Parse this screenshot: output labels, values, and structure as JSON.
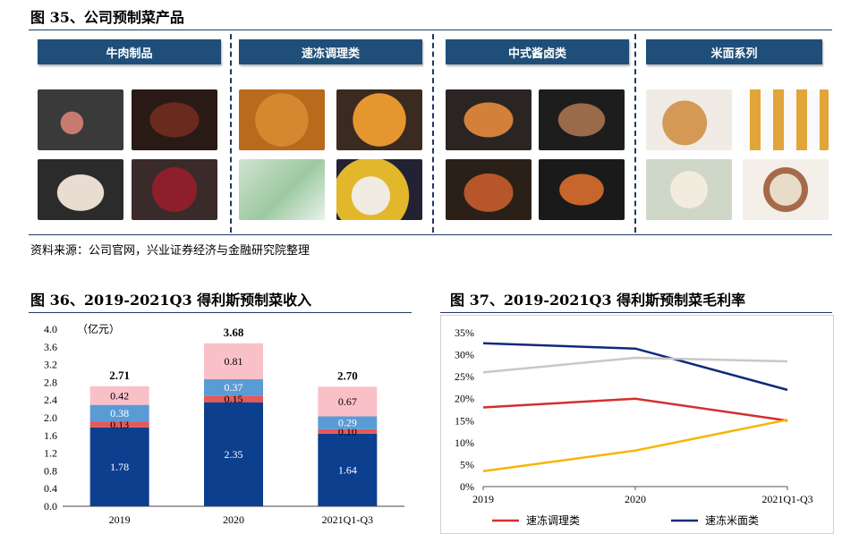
{
  "fig35": {
    "title": "图 35、公司预制菜产品",
    "categories": [
      {
        "label": "牛肉制品",
        "photos": [
          "raw-beef-slices",
          "grilled-steak",
          "beef-tripe",
          "beef-cubes"
        ]
      },
      {
        "label": "速冻调理类",
        "photos": [
          "fried-chicken-nuggets",
          "tofu-cubes",
          "green-balls-package",
          "fish-balls-corn"
        ]
      },
      {
        "label": "中式酱卤类",
        "photos": [
          "roast-duck-fillet",
          "braised-fish",
          "roast-chicken",
          "braised-shrimp"
        ]
      },
      {
        "label": "米面系列",
        "photos": [
          "noodle-plate",
          "sausage-skewers",
          "dumplings",
          "wonton-bowl"
        ]
      }
    ],
    "source": "资料来源：公司官网，兴业证券经济与金融研究院整理"
  },
  "fig36": {
    "title": "图 36、2019-2021Q3 得利斯预制菜收入",
    "unit_label": "（亿元）",
    "chart_data": {
      "type": "bar",
      "stacked": true,
      "categories": [
        "2019",
        "2020",
        "2021Q1-Q3"
      ],
      "series": [
        {
          "values": [
            1.78,
            2.35,
            1.64
          ],
          "color": "#0d3f8f"
        },
        {
          "values": [
            0.13,
            0.15,
            0.1
          ],
          "color": "#e5595a"
        },
        {
          "values": [
            0.38,
            0.37,
            0.29
          ],
          "color": "#5b9bd5"
        },
        {
          "values": [
            0.42,
            0.81,
            0.67
          ],
          "color": "#fac0c8"
        }
      ],
      "totals": [
        2.71,
        3.68,
        2.7
      ],
      "ylim": [
        0,
        4.0
      ],
      "yticks": [
        "0.0",
        "0.4",
        "0.8",
        "1.2",
        "1.6",
        "2.0",
        "2.4",
        "2.8",
        "3.2",
        "3.6",
        "4.0"
      ],
      "ytick_values": [
        0,
        0.4,
        0.8,
        1.2,
        1.6,
        2.0,
        2.4,
        2.8,
        3.2,
        3.6,
        4.0
      ]
    }
  },
  "fig37": {
    "title": "图 37、2019-2021Q3 得利斯预制菜毛利率",
    "chart_data": {
      "type": "line",
      "x": [
        "2019",
        "2020",
        "2021Q1-Q3"
      ],
      "series": [
        {
          "name": "速冻调理类",
          "values": [
            18.0,
            20.0,
            15.0
          ],
          "color": "#d32f2f"
        },
        {
          "name": "速冻米面类",
          "values": [
            32.6,
            31.4,
            22.0
          ],
          "color": "#102a7a"
        },
        {
          "values": [
            26.0,
            29.3,
            28.5
          ],
          "color": "#c8c8c8"
        },
        {
          "values": [
            3.5,
            8.2,
            15.2
          ],
          "color": "#f7b500"
        }
      ],
      "ylim": [
        0,
        35
      ],
      "yticks": [
        "0%",
        "5%",
        "10%",
        "15%",
        "20%",
        "25%",
        "30%",
        "35%"
      ],
      "ytick_values": [
        0,
        5,
        10,
        15,
        20,
        25,
        30,
        35
      ]
    }
  }
}
